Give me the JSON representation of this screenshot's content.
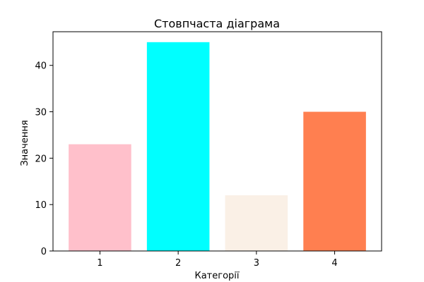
{
  "chart_data": {
    "type": "bar",
    "title": "Стовпчаста діаграма",
    "xlabel": "Категорії",
    "ylabel": "Значення",
    "categories": [
      "1",
      "2",
      "3",
      "4"
    ],
    "values": [
      23,
      45,
      12,
      30
    ],
    "colors": [
      "#ffc0cb",
      "#00ffff",
      "#faf0e6",
      "#ff7f50"
    ],
    "ylim": [
      0,
      47.25
    ],
    "yticks": [
      0,
      10,
      20,
      30,
      40
    ],
    "xlim": [
      0.4,
      4.6
    ],
    "grid": false,
    "legend": "none"
  }
}
